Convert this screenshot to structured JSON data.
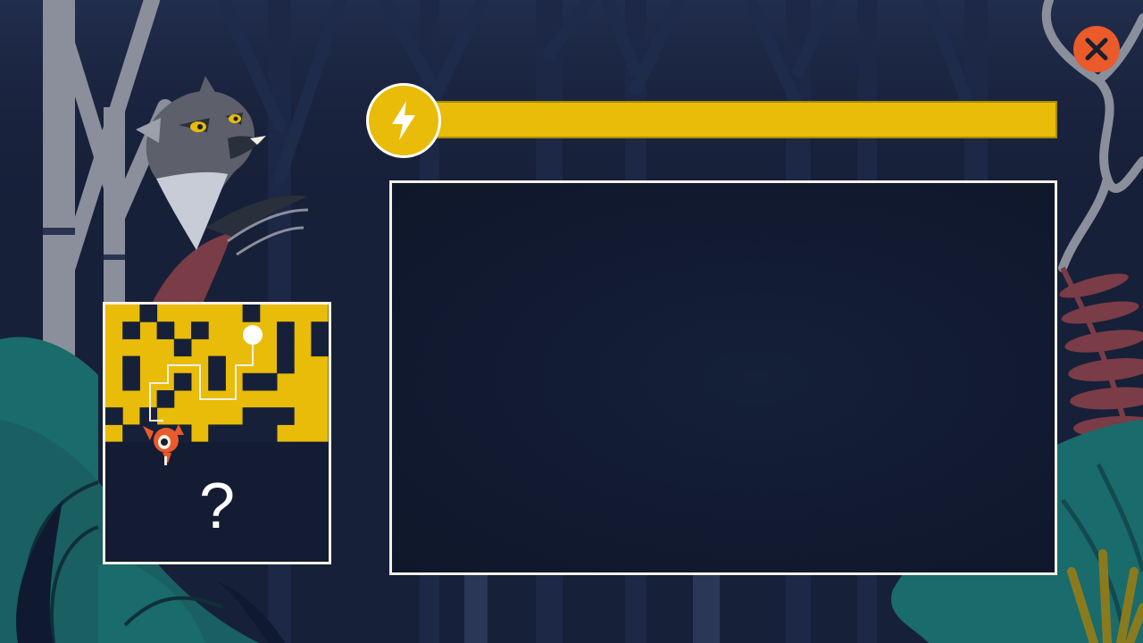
{
  "colors": {
    "background": "#172039",
    "accent_yellow": "#e8bc08",
    "close_red": "#ea5a2b",
    "panel_border": "#f4f1e4",
    "text_white": "#ffffff"
  },
  "energy": {
    "fill_fraction": 1.0,
    "icon": "lightning-bolt-icon"
  },
  "close_button": {
    "icon": "close-icon"
  },
  "mini_map": {
    "hidden_marker": "?",
    "player": "fawn-icon",
    "goal": "white-dot"
  }
}
